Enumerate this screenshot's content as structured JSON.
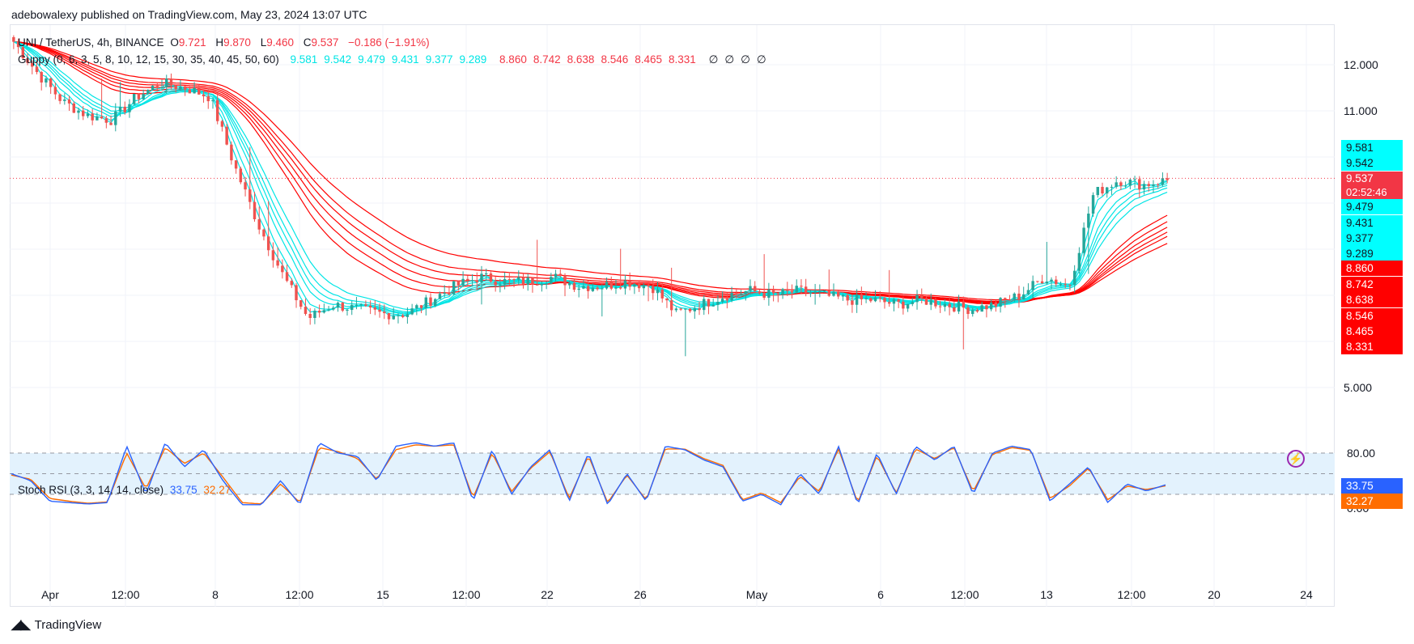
{
  "header": {
    "published": "adebowalexy published on TradingView.com, May 23, 2024 13:07 UTC"
  },
  "symbol_legend": {
    "symbol": "UNI / TetherUS, 4h, BINANCE",
    "o_label": "O",
    "o": "9.721",
    "h_label": "H",
    "h": "9.870",
    "l_label": "L",
    "l": "9.460",
    "c_label": "C",
    "c": "9.537",
    "change": "−0.186 (−1.91%)"
  },
  "guppy_legend": {
    "label": "Guppy (0, 6, 3, 5, 8, 10, 12, 15, 30, 35, 40, 45, 50, 60)",
    "short_values": [
      "9.581",
      "9.542",
      "9.479",
      "9.431",
      "9.377",
      "9.289"
    ],
    "long_values": [
      "8.860",
      "8.742",
      "8.638",
      "8.546",
      "8.465",
      "8.331"
    ],
    "empty_values": [
      "∅",
      "∅",
      "∅",
      "∅"
    ]
  },
  "rsi_legend": {
    "label": "Stoch RSI (3, 3, 14, 14, close)",
    "k": "33.75",
    "d": "32.27"
  },
  "price_axis": {
    "ticks": [
      "12.000",
      "11.000",
      "5.000"
    ]
  },
  "price_badges": {
    "last_price": "9.537",
    "countdown": "02:52:46",
    "short": [
      "9.581",
      "9.542",
      "9.479",
      "9.431",
      "9.377",
      "9.289"
    ],
    "long": [
      "8.860",
      "8.742",
      "8.638",
      "8.546",
      "8.465",
      "8.331"
    ]
  },
  "rsi_axis": {
    "ticks": [
      "80.00",
      "0.00"
    ],
    "k_badge": "33.75",
    "d_badge": "32.27"
  },
  "time_axis": {
    "labels": [
      "Apr",
      "12:00",
      "8",
      "12:00",
      "15",
      "12:00",
      "22",
      "26",
      "May",
      "6",
      "12:00",
      "13",
      "12:00",
      "20",
      "24"
    ]
  },
  "footer": {
    "brand": "TradingView"
  },
  "colors": {
    "up": "#26a69a",
    "down": "#ef5350",
    "short_ema": "#00e5e5",
    "long_ema": "#ff0000",
    "rsi_k": "#2962ff",
    "rsi_d": "#ff6d00",
    "rsi_band": "#e3f2fd",
    "last_price": "#f23645"
  },
  "chart_data": [
    {
      "type": "candlestick",
      "title": "UNI / TetherUS, 4h, BINANCE",
      "y_axis_ticks": [
        12.0,
        11.0,
        5.0
      ],
      "last": 9.537,
      "series": [
        {
          "name": "Guppy short",
          "values": [
            9.581,
            9.542,
            9.479,
            9.431,
            9.377,
            9.289
          ]
        },
        {
          "name": "Guppy long",
          "values": [
            8.86,
            8.742,
            8.638,
            8.546,
            8.465,
            8.331
          ]
        }
      ],
      "close_path": [
        12.5,
        11.8,
        11.2,
        10.9,
        10.8,
        11.3,
        11.6,
        11.5,
        11.3,
        9.8,
        8.5,
        7.4,
        6.5,
        6.8,
        6.7,
        6.6,
        6.6,
        6.9,
        7.2,
        7.4,
        7.3,
        7.3,
        7.4,
        7.2,
        7.2,
        7.3,
        7.2,
        6.6,
        6.8,
        7.0,
        7.1,
        7.0,
        7.1,
        7.0,
        6.9,
        6.9,
        6.8,
        6.9,
        6.8,
        6.7,
        6.8,
        7.0,
        7.4,
        7.2,
        9.2,
        9.5,
        9.4,
        9.5
      ]
    },
    {
      "type": "line",
      "title": "Stoch RSI (3, 3, 14, 14, close)",
      "ylim": [
        0,
        100
      ],
      "y_axis_ticks": [
        80,
        0
      ],
      "band": [
        20,
        80
      ],
      "series": [
        {
          "name": "%K",
          "values": [
            50,
            40,
            10,
            8,
            6,
            8,
            90,
            20,
            95,
            60,
            85,
            40,
            5,
            5,
            40,
            5,
            95,
            80,
            75,
            40,
            90,
            95,
            90,
            95,
            10,
            85,
            20,
            60,
            85,
            10,
            80,
            5,
            50,
            10,
            90,
            85,
            70,
            60,
            10,
            20,
            5,
            50,
            20,
            90,
            5,
            80,
            20,
            90,
            70,
            90,
            20,
            80,
            90,
            85,
            10,
            35,
            60,
            8,
            35,
            25,
            33.75
          ]
        },
        {
          "name": "%D",
          "values": [
            48,
            42,
            14,
            10,
            7,
            9,
            80,
            28,
            88,
            65,
            80,
            45,
            8,
            6,
            35,
            8,
            88,
            82,
            72,
            42,
            85,
            92,
            90,
            92,
            15,
            80,
            24,
            58,
            82,
            14,
            76,
            8,
            48,
            12,
            86,
            86,
            72,
            62,
            12,
            22,
            8,
            46,
            24,
            86,
            8,
            76,
            22,
            86,
            72,
            88,
            24,
            78,
            88,
            84,
            14,
            32,
            58,
            12,
            32,
            27,
            32.27
          ]
        }
      ]
    }
  ]
}
